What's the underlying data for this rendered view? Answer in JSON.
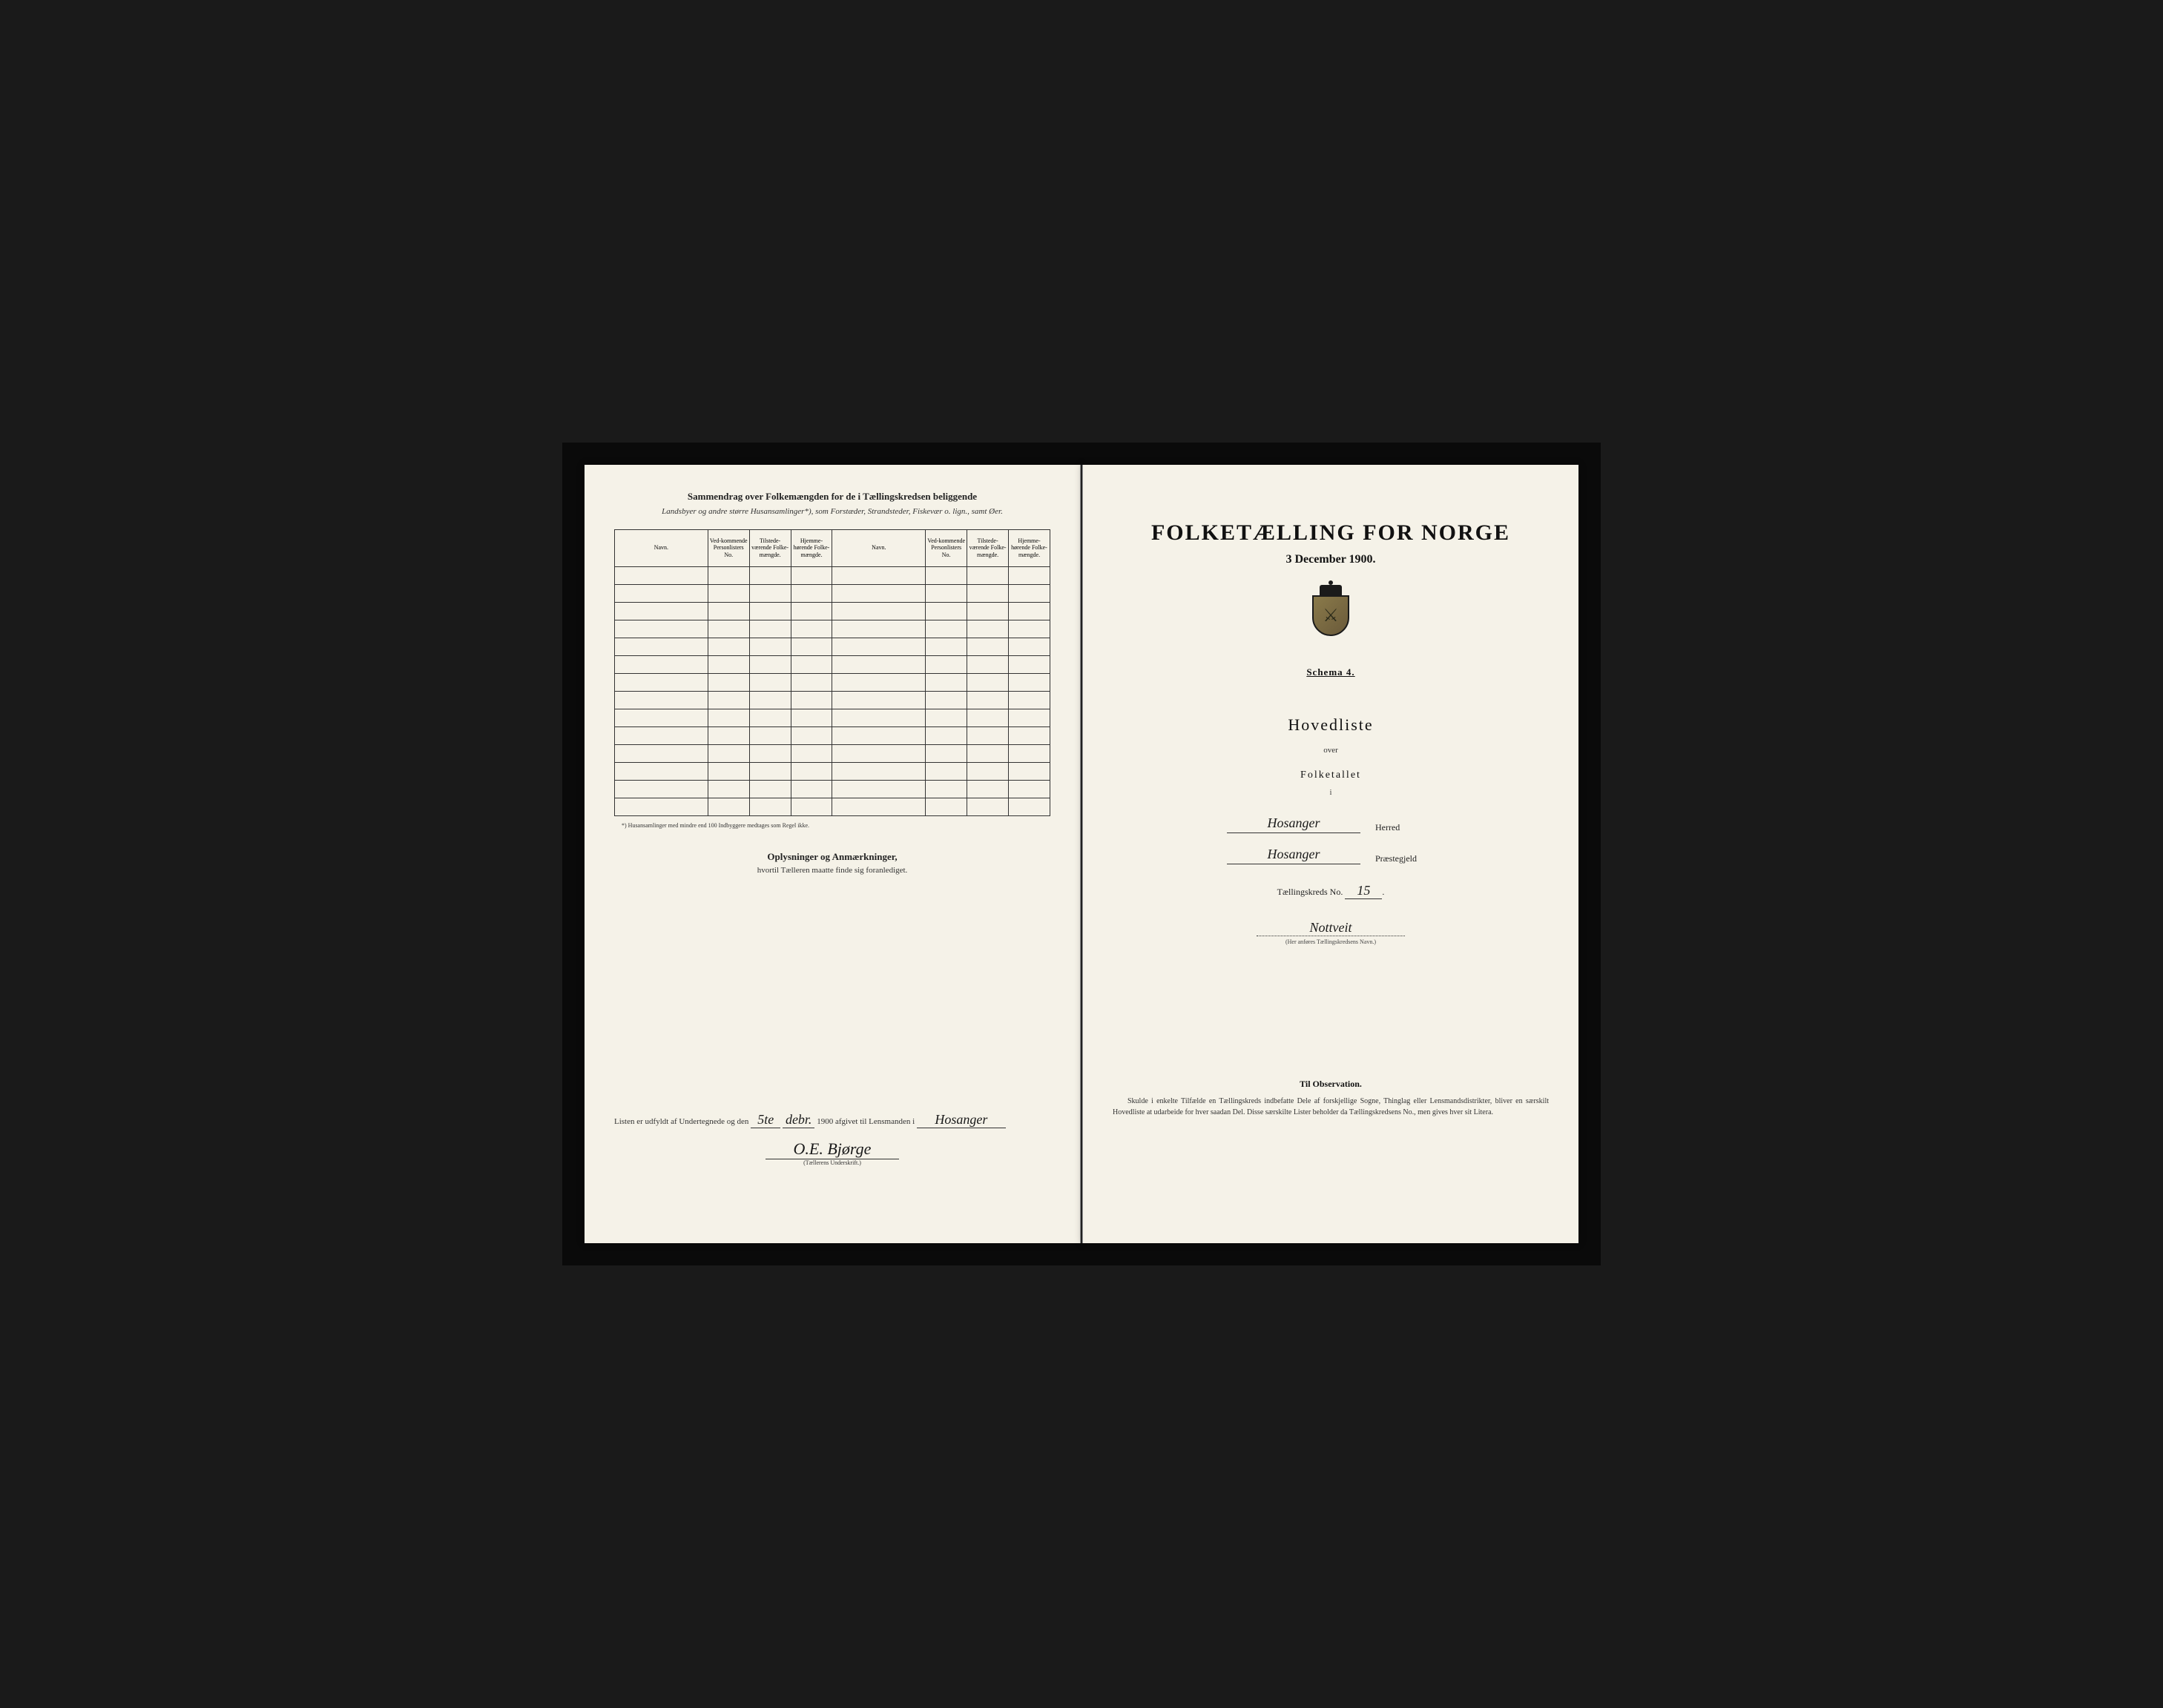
{
  "left_page": {
    "header_title": "Sammendrag over Folkemængden for de i Tællingskredsen beliggende",
    "header_subtitle": "Landsbyer og andre større Husansamlinger*), som Forstæder, Strandsteder, Fiskevær o. lign., samt Øer.",
    "table": {
      "columns": [
        "Navn.",
        "Ved-kommende Personlisters No.",
        "Tilstede-værende Folke-mængde.",
        "Hjemme-hørende Folke-mængde.",
        "Navn.",
        "Ved-kommende Personlisters No.",
        "Tilstede-værende Folke-mængde.",
        "Hjemme-hørende Folke-mængde."
      ],
      "row_count": 14
    },
    "footnote": "*) Husansamlinger med mindre end 100 Indbyggere medtages som Regel ikke.",
    "section_header": "Oplysninger og Anmærkninger,",
    "section_sub": "hvortil Tælleren maatte finde sig foranlediget.",
    "signature": {
      "prefix": "Listen er udfyldt af Undertegnede og den",
      "day": "5te",
      "month": "debr.",
      "year_prefix": "1900 afgivet til Lensmanden i",
      "place": "Hosanger",
      "signed_by": "O.E. Bjørge",
      "caption": "(Tællerens Underskrift.)"
    }
  },
  "right_page": {
    "main_title": "FOLKETÆLLING FOR NORGE",
    "main_date": "3 December 1900.",
    "schema": "Schema 4.",
    "hovedliste": "Hovedliste",
    "over": "over",
    "folketallet": "Folketallet",
    "small_i": "i",
    "herred_value": "Hosanger",
    "herred_label": "Herred",
    "praestegjeld_value": "Hosanger",
    "praestegjeld_label": "Præstegjeld",
    "kreds_label": "Tællingskreds No.",
    "kreds_no": "15",
    "kreds_name": "Nottveit",
    "kreds_caption": "(Her anføres Tællingskredsens Navn.)",
    "observation_title": "Til Observation.",
    "observation_text": "Skulde i enkelte Tilfælde en Tællingskreds indbefatte Dele af forskjellige Sogne, Thinglag eller Lensmandsdistrikter, bliver en særskilt Hovedliste at udarbeide for hver saadan Del. Disse særskilte Lister beholder da Tællingskredsens No., men gives hver sit Litera."
  },
  "colors": {
    "page_bg": "#f5f2e8",
    "text_dark": "#111111",
    "text_med": "#333333",
    "border": "#333333",
    "frame": "#0a0a0a"
  }
}
